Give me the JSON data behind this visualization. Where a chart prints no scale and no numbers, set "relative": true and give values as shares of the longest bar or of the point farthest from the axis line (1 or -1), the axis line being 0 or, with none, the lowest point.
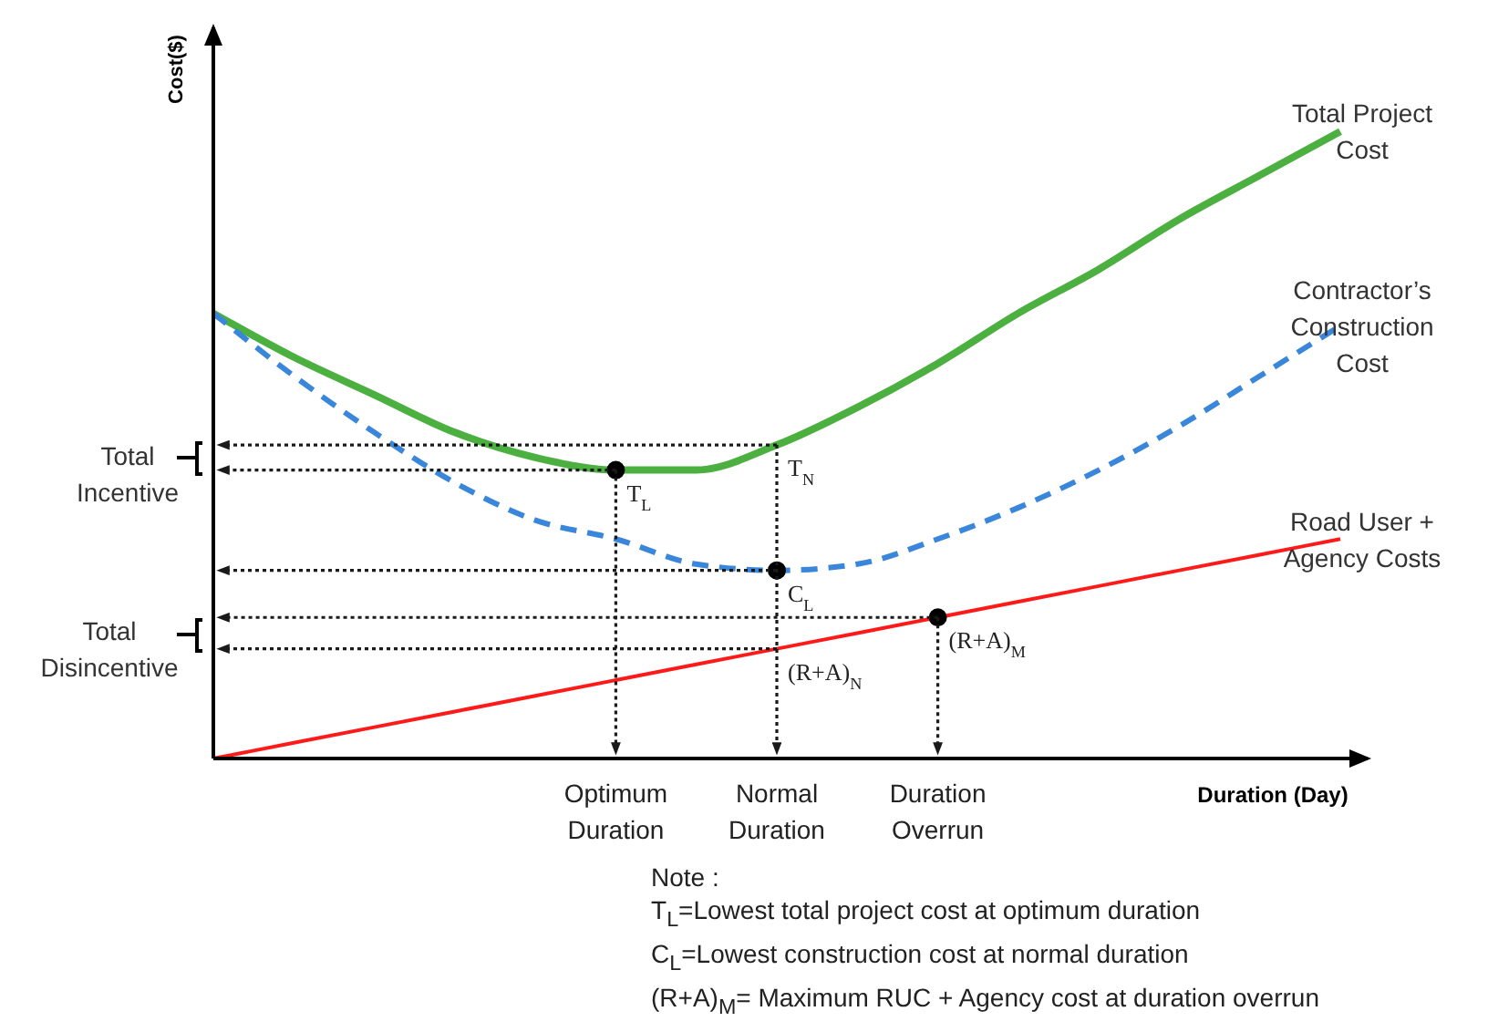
{
  "chart_data": {
    "type": "line",
    "relative": true,
    "ylabel": "Cost($)",
    "xlabel": "Duration (Day)",
    "marker": "none",
    "categories": [
      null,
      null,
      null,
      null,
      null,
      "Optimum Duration",
      null,
      "Normal Duration",
      null,
      "Duration Overrun",
      null,
      null,
      null,
      null,
      null
    ],
    "series": [
      {
        "name": "Total Project Cost",
        "color": "#4cb040",
        "line_style": "solid",
        "values": [
          0.71,
          0.64,
          0.58,
          0.52,
          0.48,
          0.46,
          0.46,
          0.5,
          0.56,
          0.63,
          0.71,
          0.78,
          0.86,
          0.93,
          1
        ]
      },
      {
        "name": "Contractor’s Construction Cost",
        "color": "#3a86db",
        "line_style": "dashed",
        "values": [
          0.71,
          0.61,
          0.52,
          0.44,
          0.38,
          0.35,
          0.31,
          0.3,
          0.31,
          0.35,
          0.4,
          0.46,
          0.53,
          0.61,
          0.69
        ]
      },
      {
        "name": "Road User + Agency Costs",
        "color": "#ff1a1a",
        "line_style": "solid",
        "values": [
          0,
          0.025,
          0.05,
          0.075,
          0.1,
          0.125,
          0.15,
          0.175,
          0.2,
          0.225,
          0.25,
          0.275,
          0.3,
          0.325,
          0.35
        ]
      },
      {
        "type": "scatter",
        "marker": "circle",
        "color": "#000000",
        "x": [
          "Optimum Duration",
          "Normal Duration",
          "Duration Overrun"
        ],
        "values": [
          0.46,
          0.3,
          0.225
        ]
      }
    ],
    "annotations": [
      {
        "text": "T$_{L}$",
        "x": "Optimum Duration",
        "y": 0.46
      },
      {
        "text": "T$_{N}$",
        "x": "Normal Duration",
        "y": 0.5
      },
      {
        "text": "C$_{L}$",
        "x": "Normal Duration",
        "y": 0.3
      },
      {
        "text": "(R+A)$_{M}$",
        "x": "Duration Overrun",
        "y": 0.225
      },
      {
        "text": "(R+A)$_{N}$",
        "x": "Normal Duration",
        "y": 0.175
      },
      "Total Incentive",
      "Total Disincentive",
      "Note :",
      "T$_{L}$=Lowest total project cost at optimum duration",
      "C$_{L}$=Lowest construction cost at normal duration",
      "(R+A)$_{M}$= Maximum RUC + Agency cost at duration overrun"
    ]
  }
}
